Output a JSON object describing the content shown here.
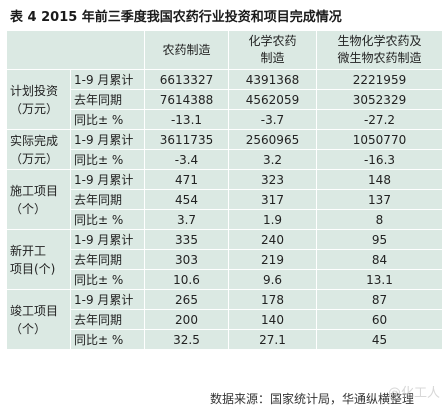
{
  "title": "表 4 2015 年前三季度我国农药行业投资和项目完成情况",
  "columns": [
    "农药制造",
    "化学农药\n制造",
    "生物化学农药及\n微生物农药制造"
  ],
  "sections": [
    {
      "label": "计划投资\n（万元）",
      "rows": [
        {
          "name": "1-9 月累计",
          "values": [
            "6613327",
            "4391368",
            "2221959"
          ]
        },
        {
          "name": "去年同期",
          "values": [
            "7614388",
            "4562059",
            "3052329"
          ]
        },
        {
          "name": "同比± %",
          "values": [
            "-13.1",
            "-3.7",
            "-27.2"
          ]
        }
      ]
    },
    {
      "label": "实际完成\n（万元）",
      "rows": [
        {
          "name": "1-9 月累计",
          "values": [
            "3611735",
            "2560965",
            "1050770"
          ]
        },
        {
          "name": "同比± %",
          "values": [
            "-3.4",
            "3.2",
            "-16.3"
          ]
        }
      ]
    },
    {
      "label": "施工项目\n（个）",
      "rows": [
        {
          "name": "1-9 月累计",
          "values": [
            "471",
            "323",
            "148"
          ]
        },
        {
          "name": "去年同期",
          "values": [
            "454",
            "317",
            "137"
          ]
        },
        {
          "name": "同比± %",
          "values": [
            "3.7",
            "1.9",
            "8"
          ]
        }
      ]
    },
    {
      "label": "新开工\n项目(个)",
      "rows": [
        {
          "name": "1-9 月累计",
          "values": [
            "335",
            "240",
            "95"
          ]
        },
        {
          "name": "去年同期",
          "values": [
            "303",
            "219",
            "84"
          ]
        },
        {
          "name": "同比± %",
          "values": [
            "10.6",
            "9.6",
            "13.1"
          ]
        }
      ]
    },
    {
      "label": "竣工项目\n（个）",
      "rows": [
        {
          "name": "1-9 月累计",
          "values": [
            "265",
            "178",
            "87"
          ]
        },
        {
          "name": "去年同期",
          "values": [
            "200",
            "140",
            "60"
          ]
        },
        {
          "name": "同比± %",
          "values": [
            "32.5",
            "27.1",
            "45"
          ]
        }
      ]
    }
  ],
  "source": "数据来源：国家统计局，华通纵横整理",
  "watermark": "@化工人"
}
